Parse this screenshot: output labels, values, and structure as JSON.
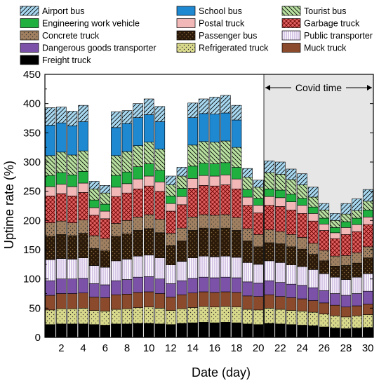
{
  "chart_data": {
    "type": "bar",
    "stacked": true,
    "xlabel": "Date (day)",
    "ylabel": "Uptime rate (%)",
    "ylim": [
      0,
      450
    ],
    "yticks": [
      0,
      50,
      100,
      150,
      200,
      250,
      300,
      350,
      400,
      450
    ],
    "xticks": [
      2,
      4,
      6,
      8,
      10,
      12,
      14,
      16,
      18,
      20,
      22,
      24,
      26,
      28,
      30
    ],
    "categories": [
      1,
      2,
      3,
      4,
      5,
      6,
      7,
      8,
      9,
      10,
      11,
      12,
      13,
      14,
      15,
      16,
      17,
      18,
      19,
      20,
      21,
      22,
      23,
      24,
      25,
      26,
      27,
      28,
      29,
      30
    ],
    "legend_position": "top",
    "annotation": {
      "label": "Covid time",
      "x_from": 20.5,
      "x_to": 30.5,
      "shaded": true,
      "shade_color": "#e6e6e6"
    },
    "series": [
      {
        "name": "Freight truck",
        "color": "#000000",
        "pattern": "solid",
        "values": [
          22,
          23,
          23,
          23,
          22,
          21,
          23,
          23,
          24,
          24,
          23,
          22,
          24,
          25,
          26,
          25,
          26,
          25,
          23,
          22,
          24,
          23,
          22,
          21,
          20,
          18,
          16,
          15,
          16,
          17
        ]
      },
      {
        "name": "Refrigerated truck",
        "color": "#d9d98c",
        "pattern": "dots",
        "values": [
          25,
          26,
          26,
          27,
          24,
          24,
          25,
          26,
          27,
          28,
          27,
          24,
          25,
          26,
          27,
          27,
          27,
          27,
          25,
          25,
          26,
          25,
          24,
          24,
          23,
          22,
          21,
          20,
          21,
          22
        ]
      },
      {
        "name": "Muck truck",
        "color": "#8b4a2b",
        "pattern": "solid",
        "values": [
          25,
          26,
          26,
          26,
          23,
          23,
          25,
          25,
          26,
          26,
          25,
          23,
          24,
          25,
          25,
          25,
          25,
          25,
          23,
          23,
          23,
          22,
          22,
          21,
          20,
          19,
          18,
          17,
          17,
          18
        ]
      },
      {
        "name": "Dangerous goods transporter",
        "color": "#7b52a8",
        "pattern": "solid",
        "values": [
          25,
          25,
          25,
          25,
          23,
          22,
          24,
          25,
          26,
          26,
          25,
          23,
          24,
          25,
          25,
          25,
          25,
          25,
          24,
          23,
          24,
          24,
          23,
          23,
          22,
          21,
          20,
          20,
          21,
          22
        ]
      },
      {
        "name": "Public transporter",
        "color": "#d8c8e8",
        "pattern": "vlines",
        "values": [
          36,
          35,
          34,
          35,
          31,
          30,
          34,
          35,
          36,
          37,
          36,
          32,
          33,
          35,
          36,
          36,
          36,
          35,
          33,
          32,
          34,
          34,
          33,
          32,
          31,
          29,
          28,
          27,
          28,
          30
        ]
      },
      {
        "name": "Passenger bus",
        "color": "#2b1a0a",
        "pattern": "dots-dark",
        "values": [
          40,
          41,
          40,
          42,
          29,
          28,
          42,
          43,
          44,
          45,
          43,
          33,
          35,
          47,
          48,
          48,
          48,
          46,
          37,
          30,
          31,
          32,
          31,
          30,
          26,
          22,
          19,
          24,
          24,
          27
        ]
      },
      {
        "name": "Concrete truck",
        "color": "#a08060",
        "pattern": "dots",
        "values": [
          23,
          23,
          22,
          23,
          22,
          21,
          22,
          23,
          23,
          24,
          23,
          21,
          22,
          23,
          23,
          23,
          23,
          22,
          21,
          21,
          22,
          21,
          21,
          20,
          19,
          18,
          17,
          17,
          18,
          19
        ]
      },
      {
        "name": "Garbage truck",
        "color": "#e06060",
        "pattern": "cross",
        "values": [
          46,
          47,
          46,
          47,
          35,
          34,
          46,
          47,
          48,
          49,
          48,
          38,
          40,
          49,
          50,
          50,
          51,
          49,
          40,
          37,
          42,
          43,
          42,
          41,
          38,
          34,
          30,
          36,
          36,
          38
        ]
      },
      {
        "name": "Postal truck",
        "color": "#f2b8b8",
        "pattern": "solid",
        "values": [
          16,
          16,
          16,
          16,
          13,
          13,
          16,
          16,
          17,
          17,
          16,
          13,
          14,
          17,
          17,
          17,
          17,
          17,
          14,
          13,
          15,
          15,
          14,
          14,
          13,
          11,
          10,
          12,
          12,
          13
        ]
      },
      {
        "name": "Engineering work vehicle",
        "color": "#20b040",
        "pattern": "solid",
        "values": [
          19,
          20,
          20,
          20,
          13,
          12,
          20,
          20,
          21,
          21,
          20,
          13,
          14,
          21,
          21,
          21,
          21,
          20,
          13,
          12,
          13,
          13,
          13,
          12,
          11,
          10,
          9,
          10,
          11,
          12
        ]
      },
      {
        "name": "Tourist bus",
        "color": "#b8e0a0",
        "pattern": "backslash",
        "values": [
          34,
          35,
          34,
          35,
          19,
          19,
          34,
          35,
          36,
          37,
          36,
          19,
          21,
          36,
          37,
          37,
          37,
          34,
          21,
          19,
          28,
          27,
          25,
          23,
          17,
          14,
          12,
          13,
          13,
          15
        ]
      },
      {
        "name": "School bus",
        "color": "#1e88d0",
        "pattern": "solid",
        "values": [
          52,
          50,
          50,
          50,
          0,
          0,
          48,
          48,
          48,
          47,
          47,
          0,
          0,
          47,
          48,
          48,
          48,
          47,
          0,
          0,
          0,
          0,
          0,
          0,
          0,
          0,
          0,
          0,
          0,
          0
        ]
      },
      {
        "name": "Airport bus",
        "color": "#a8d8f0",
        "pattern": "slash",
        "values": [
          30,
          27,
          25,
          28,
          13,
          13,
          27,
          22,
          24,
          27,
          26,
          15,
          15,
          25,
          25,
          29,
          30,
          25,
          15,
          12,
          20,
          21,
          18,
          19,
          17,
          11,
          12,
          18,
          20,
          20
        ]
      }
    ]
  }
}
